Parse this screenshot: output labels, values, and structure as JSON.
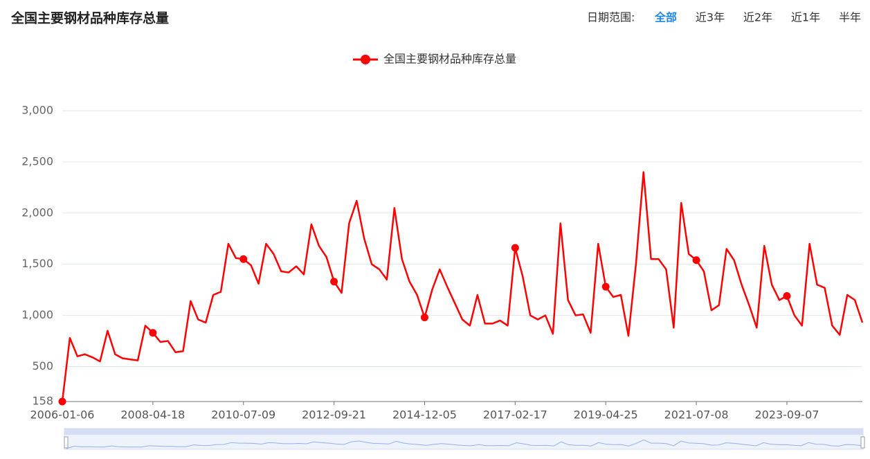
{
  "header": {
    "title": "全国主要钢材品种库存总量",
    "range_label": "日期范围:",
    "range_options": [
      "全部",
      "近3年",
      "近2年",
      "近1年",
      "半年"
    ],
    "active_option": 0
  },
  "chart_data": {
    "type": "line",
    "categories": [
      "2006-01-06",
      null,
      null,
      null,
      null,
      null,
      null,
      null,
      null,
      null,
      null,
      null,
      "2008-04-18",
      null,
      null,
      null,
      null,
      null,
      null,
      null,
      null,
      null,
      null,
      null,
      "2010-07-09",
      null,
      null,
      null,
      null,
      null,
      null,
      null,
      null,
      null,
      null,
      null,
      "2012-09-21",
      null,
      null,
      null,
      null,
      null,
      null,
      null,
      null,
      null,
      null,
      null,
      "2014-12-05",
      null,
      null,
      null,
      null,
      null,
      null,
      null,
      null,
      null,
      null,
      null,
      "2017-02-17",
      null,
      null,
      null,
      null,
      null,
      null,
      null,
      null,
      null,
      null,
      null,
      "2019-04-25",
      null,
      null,
      null,
      null,
      null,
      null,
      null,
      null,
      null,
      null,
      null,
      "2021-07-08",
      null,
      null,
      null,
      null,
      null,
      null,
      null,
      null,
      null,
      null,
      null,
      "2023-09-07",
      null,
      null,
      null,
      null,
      null,
      null,
      null,
      null,
      null,
      null
    ],
    "series": [
      {
        "name": "全国主要钢材品种库存总量",
        "color": "#ff0000",
        "values": [
          158,
          780,
          600,
          620,
          590,
          550,
          850,
          620,
          580,
          570,
          560,
          900,
          830,
          740,
          750,
          640,
          650,
          1140,
          960,
          930,
          1200,
          1230,
          1700,
          1560,
          1550,
          1490,
          1310,
          1700,
          1600,
          1430,
          1420,
          1480,
          1400,
          1890,
          1680,
          1570,
          1330,
          1220,
          1900,
          2120,
          1750,
          1500,
          1450,
          1350,
          2050,
          1550,
          1330,
          1200,
          980,
          1250,
          1450,
          1280,
          1120,
          960,
          900,
          1200,
          920,
          920,
          950,
          900,
          1660,
          1380,
          1000,
          960,
          1000,
          820,
          1900,
          1150,
          1000,
          1010,
          830,
          1700,
          1280,
          1180,
          1200,
          800,
          1500,
          2400,
          1550,
          1550,
          1450,
          880,
          2100,
          1600,
          1540,
          1430,
          1050,
          1100,
          1650,
          1540,
          1300,
          1100,
          880,
          1680,
          1300,
          1150,
          1190,
          1000,
          900,
          1700,
          1300,
          1270,
          900,
          810,
          1200,
          1150,
          930
        ]
      }
    ],
    "ylim": [
      158,
      3000
    ],
    "yticks": [
      158,
      500,
      {
        "value": 1000,
        "label": "1,000"
      },
      {
        "value": 1500,
        "label": "1,500"
      },
      {
        "value": 2000,
        "label": "2,000"
      },
      {
        "value": 2500,
        "label": "2,500"
      },
      {
        "value": 3000,
        "label": "3,000"
      }
    ],
    "grid": true,
    "legend": "top"
  }
}
